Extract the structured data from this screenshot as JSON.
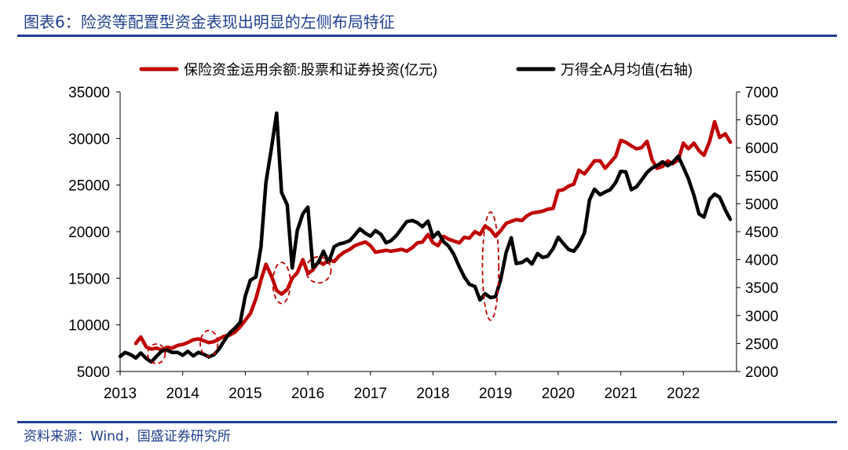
{
  "figure": {
    "title": "图表6：险资等配置型资金表现出明显的左侧布局特征",
    "source": "资料来源：Wind，国盛证券研究所"
  },
  "chart_data": {
    "type": "line",
    "legend": {
      "placement": "top",
      "entries": [
        "保险资金运用余额:股票和证券投资(亿元)",
        "万得全A月均值(右轴)"
      ]
    },
    "x_ticks": [
      "2013",
      "2014",
      "2015",
      "2016",
      "2017",
      "2018",
      "2019",
      "2020",
      "2021",
      "2022"
    ],
    "y_left": {
      "ticks": [
        "35000",
        "30000",
        "25000",
        "20000",
        "15000",
        "10000",
        "5000"
      ],
      "range": [
        5000,
        35000
      ]
    },
    "y_right": {
      "ticks": [
        "7000",
        "6500",
        "6000",
        "5500",
        "5000",
        "4500",
        "4000",
        "3500",
        "3000",
        "2500",
        "2000"
      ],
      "range": [
        2000,
        7000
      ]
    },
    "series": [
      {
        "name": "保险资金运用余额:股票和证券投资(亿元)",
        "axis": "left",
        "color": "#c00000",
        "points": [
          [
            2013.25,
            8000
          ],
          [
            2013.33,
            8700
          ],
          [
            2013.42,
            7600
          ],
          [
            2013.5,
            7400
          ],
          [
            2013.58,
            7500
          ],
          [
            2013.67,
            7300
          ],
          [
            2013.75,
            7600
          ],
          [
            2013.83,
            7500
          ],
          [
            2013.92,
            7800
          ],
          [
            2014.0,
            7900
          ],
          [
            2014.08,
            8100
          ],
          [
            2014.17,
            8400
          ],
          [
            2014.25,
            8500
          ],
          [
            2014.33,
            8300
          ],
          [
            2014.42,
            8100
          ],
          [
            2014.5,
            8200
          ],
          [
            2014.58,
            8500
          ],
          [
            2014.67,
            8800
          ],
          [
            2014.75,
            8900
          ],
          [
            2014.83,
            9200
          ],
          [
            2014.92,
            9800
          ],
          [
            2015.0,
            10500
          ],
          [
            2015.08,
            11200
          ],
          [
            2015.17,
            12800
          ],
          [
            2015.25,
            14800
          ],
          [
            2015.33,
            16500
          ],
          [
            2015.42,
            15200
          ],
          [
            2015.5,
            13700
          ],
          [
            2015.58,
            13300
          ],
          [
            2015.67,
            13800
          ],
          [
            2015.75,
            15000
          ],
          [
            2015.83,
            15600
          ],
          [
            2015.92,
            17000
          ],
          [
            2016.0,
            15500
          ],
          [
            2016.08,
            15900
          ],
          [
            2016.17,
            16800
          ],
          [
            2016.25,
            16500
          ],
          [
            2016.33,
            17000
          ],
          [
            2016.42,
            16800
          ],
          [
            2016.5,
            17400
          ],
          [
            2016.58,
            17800
          ],
          [
            2016.67,
            18100
          ],
          [
            2016.75,
            18500
          ],
          [
            2016.83,
            18700
          ],
          [
            2016.92,
            18900
          ],
          [
            2017.0,
            18500
          ],
          [
            2017.08,
            17800
          ],
          [
            2017.17,
            17900
          ],
          [
            2017.25,
            18000
          ],
          [
            2017.33,
            17900
          ],
          [
            2017.42,
            18000
          ],
          [
            2017.5,
            18100
          ],
          [
            2017.58,
            17900
          ],
          [
            2017.67,
            18300
          ],
          [
            2017.75,
            18800
          ],
          [
            2017.83,
            18900
          ],
          [
            2017.92,
            19700
          ],
          [
            2018.0,
            18800
          ],
          [
            2018.08,
            18500
          ],
          [
            2018.17,
            19500
          ],
          [
            2018.25,
            19200
          ],
          [
            2018.33,
            19000
          ],
          [
            2018.42,
            18800
          ],
          [
            2018.5,
            19400
          ],
          [
            2018.58,
            19300
          ],
          [
            2018.67,
            20000
          ],
          [
            2018.75,
            19700
          ],
          [
            2018.83,
            20600
          ],
          [
            2018.92,
            20200
          ],
          [
            2019.0,
            19500
          ],
          [
            2019.08,
            20100
          ],
          [
            2019.17,
            20900
          ],
          [
            2019.25,
            21100
          ],
          [
            2019.33,
            21300
          ],
          [
            2019.42,
            21200
          ],
          [
            2019.5,
            21700
          ],
          [
            2019.58,
            22000
          ],
          [
            2019.67,
            22100
          ],
          [
            2019.75,
            22200
          ],
          [
            2019.83,
            22400
          ],
          [
            2019.92,
            22500
          ],
          [
            2020.0,
            24400
          ],
          [
            2020.08,
            24500
          ],
          [
            2020.17,
            24900
          ],
          [
            2020.25,
            25100
          ],
          [
            2020.33,
            26600
          ],
          [
            2020.42,
            26200
          ],
          [
            2020.5,
            26900
          ],
          [
            2020.58,
            27600
          ],
          [
            2020.67,
            27600
          ],
          [
            2020.75,
            26800
          ],
          [
            2020.83,
            27400
          ],
          [
            2020.92,
            28100
          ],
          [
            2021.0,
            29800
          ],
          [
            2021.08,
            29600
          ],
          [
            2021.17,
            29200
          ],
          [
            2021.25,
            28900
          ],
          [
            2021.33,
            29000
          ],
          [
            2021.42,
            29700
          ],
          [
            2021.5,
            27700
          ],
          [
            2021.58,
            26800
          ],
          [
            2021.67,
            27000
          ],
          [
            2021.75,
            27600
          ],
          [
            2021.83,
            27300
          ],
          [
            2021.92,
            27700
          ],
          [
            2022.0,
            29500
          ],
          [
            2022.08,
            28900
          ],
          [
            2022.17,
            29500
          ],
          [
            2022.25,
            28700
          ],
          [
            2022.33,
            28200
          ],
          [
            2022.42,
            29700
          ],
          [
            2022.5,
            31800
          ],
          [
            2022.58,
            30100
          ],
          [
            2022.67,
            30500
          ],
          [
            2022.75,
            29600
          ]
        ]
      },
      {
        "name": "万得全A月均值(右轴)",
        "axis": "right",
        "color": "#000000",
        "points": [
          [
            2013.0,
            2270
          ],
          [
            2013.08,
            2340
          ],
          [
            2013.17,
            2300
          ],
          [
            2013.25,
            2240
          ],
          [
            2013.33,
            2330
          ],
          [
            2013.42,
            2230
          ],
          [
            2013.5,
            2170
          ],
          [
            2013.58,
            2270
          ],
          [
            2013.67,
            2370
          ],
          [
            2013.75,
            2380
          ],
          [
            2013.83,
            2340
          ],
          [
            2013.92,
            2340
          ],
          [
            2014.0,
            2290
          ],
          [
            2014.08,
            2360
          ],
          [
            2014.17,
            2280
          ],
          [
            2014.25,
            2340
          ],
          [
            2014.33,
            2310
          ],
          [
            2014.42,
            2260
          ],
          [
            2014.5,
            2300
          ],
          [
            2014.58,
            2400
          ],
          [
            2014.67,
            2560
          ],
          [
            2014.75,
            2690
          ],
          [
            2014.83,
            2770
          ],
          [
            2014.92,
            2880
          ],
          [
            2015.0,
            3350
          ],
          [
            2015.08,
            3630
          ],
          [
            2015.17,
            3690
          ],
          [
            2015.25,
            4220
          ],
          [
            2015.33,
            5380
          ],
          [
            2015.42,
            6010
          ],
          [
            2015.5,
            6620
          ],
          [
            2015.58,
            5200
          ],
          [
            2015.67,
            4980
          ],
          [
            2015.75,
            3850
          ],
          [
            2015.83,
            4520
          ],
          [
            2015.92,
            4820
          ],
          [
            2016.0,
            4940
          ],
          [
            2016.08,
            3860
          ],
          [
            2016.17,
            3950
          ],
          [
            2016.25,
            4150
          ],
          [
            2016.33,
            3950
          ],
          [
            2016.42,
            4230
          ],
          [
            2016.5,
            4280
          ],
          [
            2016.58,
            4300
          ],
          [
            2016.67,
            4340
          ],
          [
            2016.75,
            4440
          ],
          [
            2016.83,
            4550
          ],
          [
            2016.92,
            4470
          ],
          [
            2017.0,
            4420
          ],
          [
            2017.08,
            4520
          ],
          [
            2017.17,
            4450
          ],
          [
            2017.25,
            4300
          ],
          [
            2017.33,
            4340
          ],
          [
            2017.42,
            4440
          ],
          [
            2017.5,
            4560
          ],
          [
            2017.58,
            4680
          ],
          [
            2017.67,
            4700
          ],
          [
            2017.75,
            4660
          ],
          [
            2017.83,
            4590
          ],
          [
            2017.92,
            4690
          ],
          [
            2018.0,
            4400
          ],
          [
            2018.08,
            4490
          ],
          [
            2018.17,
            4320
          ],
          [
            2018.25,
            4240
          ],
          [
            2018.33,
            4100
          ],
          [
            2018.42,
            3870
          ],
          [
            2018.5,
            3690
          ],
          [
            2018.58,
            3560
          ],
          [
            2018.67,
            3520
          ],
          [
            2018.75,
            3280
          ],
          [
            2018.83,
            3390
          ],
          [
            2018.92,
            3320
          ],
          [
            2019.0,
            3340
          ],
          [
            2019.08,
            3640
          ],
          [
            2019.17,
            4130
          ],
          [
            2019.25,
            4390
          ],
          [
            2019.33,
            3930
          ],
          [
            2019.42,
            3950
          ],
          [
            2019.5,
            4010
          ],
          [
            2019.58,
            3920
          ],
          [
            2019.67,
            4110
          ],
          [
            2019.75,
            4040
          ],
          [
            2019.83,
            4060
          ],
          [
            2019.92,
            4200
          ],
          [
            2020.0,
            4400
          ],
          [
            2020.08,
            4290
          ],
          [
            2020.17,
            4180
          ],
          [
            2020.25,
            4150
          ],
          [
            2020.33,
            4270
          ],
          [
            2020.42,
            4480
          ],
          [
            2020.5,
            5070
          ],
          [
            2020.58,
            5260
          ],
          [
            2020.67,
            5160
          ],
          [
            2020.75,
            5210
          ],
          [
            2020.83,
            5250
          ],
          [
            2020.92,
            5380
          ],
          [
            2021.0,
            5580
          ],
          [
            2021.08,
            5570
          ],
          [
            2021.17,
            5250
          ],
          [
            2021.25,
            5300
          ],
          [
            2021.33,
            5420
          ],
          [
            2021.42,
            5560
          ],
          [
            2021.5,
            5640
          ],
          [
            2021.58,
            5680
          ],
          [
            2021.67,
            5750
          ],
          [
            2021.75,
            5680
          ],
          [
            2021.83,
            5740
          ],
          [
            2021.92,
            5850
          ],
          [
            2022.0,
            5650
          ],
          [
            2022.08,
            5450
          ],
          [
            2022.17,
            5150
          ],
          [
            2022.25,
            4820
          ],
          [
            2022.33,
            4760
          ],
          [
            2022.42,
            5080
          ],
          [
            2022.5,
            5170
          ],
          [
            2022.58,
            5120
          ],
          [
            2022.67,
            4890
          ],
          [
            2022.75,
            4720
          ]
        ]
      }
    ],
    "annotations": {
      "type": "dashed-ellipses",
      "color": "#c00000",
      "regions": [
        {
          "x": 2013.58,
          "y_left": 6900,
          "rx_years": 0.14,
          "ry_left": 1050
        },
        {
          "x": 2014.42,
          "y_left": 8000,
          "rx_years": 0.14,
          "ry_left": 1400
        },
        {
          "x": 2015.58,
          "y_left": 14500,
          "rx_years": 0.14,
          "ry_left": 2200
        },
        {
          "x": 2016.17,
          "y_left": 15900,
          "rx_years": 0.2,
          "ry_left": 1400
        },
        {
          "x": 2018.92,
          "y_left": 16300,
          "rx_years": 0.13,
          "ry_left": 5800
        }
      ]
    }
  }
}
